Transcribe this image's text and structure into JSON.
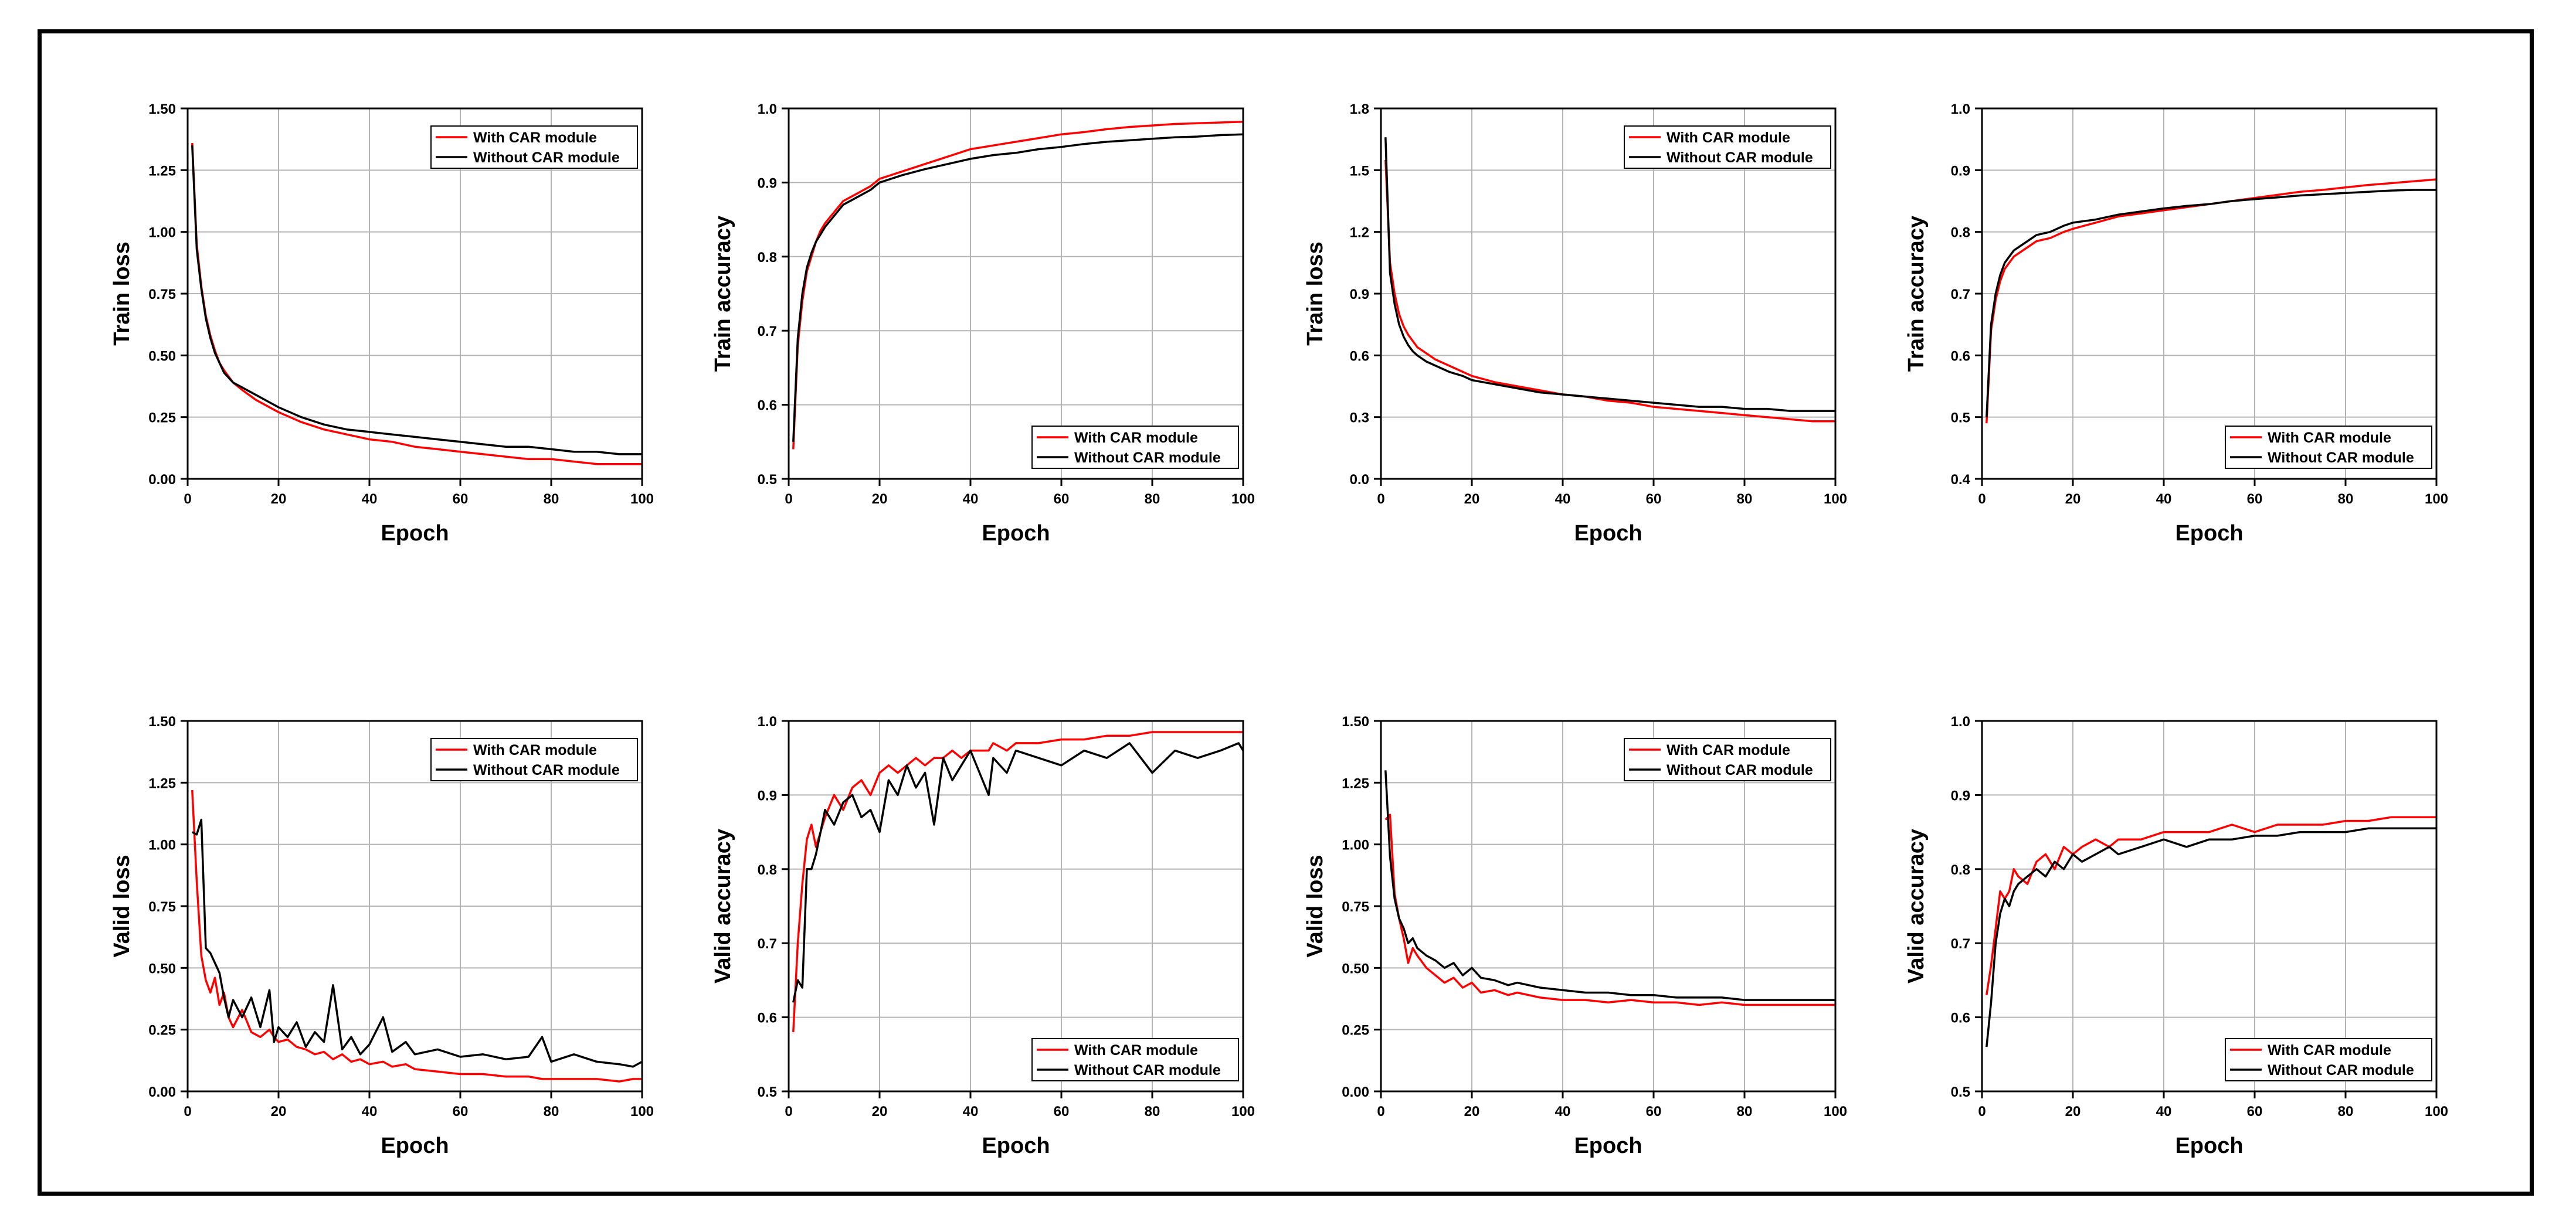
{
  "colors": {
    "with": "#ff0000",
    "without": "#000000",
    "grid": "#b4b4b4",
    "frame": "#000000"
  },
  "legend": {
    "with": "With CAR module",
    "without": "Without CAR module"
  },
  "chart_data": [
    {
      "type": "line",
      "ylabel": "Train loss",
      "xlabel": "Epoch",
      "ylim": [
        0,
        1.5
      ],
      "xlim": [
        0,
        100
      ],
      "yticks": [
        "0.00",
        "0.25",
        "0.50",
        "0.75",
        "1.00",
        "1.25",
        "1.50"
      ],
      "xticks": [
        "0",
        "20",
        "40",
        "60",
        "80",
        "100"
      ],
      "legend_position": "top-right",
      "x": [
        1,
        2,
        3,
        4,
        5,
        6,
        7,
        8,
        10,
        12,
        15,
        18,
        20,
        25,
        30,
        35,
        40,
        45,
        50,
        55,
        60,
        65,
        70,
        75,
        80,
        85,
        90,
        95,
        100
      ],
      "series": [
        {
          "name": "With CAR module",
          "values": [
            1.36,
            0.95,
            0.78,
            0.66,
            0.58,
            0.52,
            0.47,
            0.44,
            0.39,
            0.36,
            0.32,
            0.29,
            0.27,
            0.23,
            0.2,
            0.18,
            0.16,
            0.15,
            0.13,
            0.12,
            0.11,
            0.1,
            0.09,
            0.08,
            0.08,
            0.07,
            0.06,
            0.06,
            0.06
          ]
        },
        {
          "name": "Without CAR module",
          "values": [
            1.35,
            0.93,
            0.77,
            0.65,
            0.57,
            0.51,
            0.47,
            0.43,
            0.39,
            0.37,
            0.34,
            0.31,
            0.29,
            0.25,
            0.22,
            0.2,
            0.19,
            0.18,
            0.17,
            0.16,
            0.15,
            0.14,
            0.13,
            0.13,
            0.12,
            0.11,
            0.11,
            0.1,
            0.1
          ]
        }
      ]
    },
    {
      "type": "line",
      "ylabel": "Train accuracy",
      "xlabel": "Epoch",
      "ylim": [
        0.5,
        1.0
      ],
      "xlim": [
        0,
        100
      ],
      "yticks": [
        "0.5",
        "0.6",
        "0.7",
        "0.8",
        "0.9",
        "1.0"
      ],
      "xticks": [
        "0",
        "20",
        "40",
        "60",
        "80",
        "100"
      ],
      "legend_position": "bottom-right",
      "x": [
        1,
        2,
        3,
        4,
        5,
        6,
        7,
        8,
        10,
        12,
        15,
        18,
        20,
        25,
        30,
        35,
        40,
        45,
        50,
        55,
        60,
        65,
        70,
        75,
        80,
        85,
        90,
        95,
        100
      ],
      "series": [
        {
          "name": "With CAR module",
          "values": [
            0.54,
            0.68,
            0.74,
            0.78,
            0.8,
            0.82,
            0.835,
            0.845,
            0.86,
            0.875,
            0.885,
            0.895,
            0.905,
            0.915,
            0.925,
            0.935,
            0.945,
            0.95,
            0.955,
            0.96,
            0.965,
            0.968,
            0.972,
            0.975,
            0.977,
            0.979,
            0.98,
            0.981,
            0.982
          ]
        },
        {
          "name": "Without CAR module",
          "values": [
            0.55,
            0.69,
            0.75,
            0.785,
            0.805,
            0.82,
            0.83,
            0.84,
            0.855,
            0.87,
            0.88,
            0.89,
            0.9,
            0.91,
            0.918,
            0.925,
            0.932,
            0.937,
            0.94,
            0.945,
            0.948,
            0.952,
            0.955,
            0.957,
            0.959,
            0.961,
            0.962,
            0.964,
            0.965
          ]
        }
      ]
    },
    {
      "type": "line",
      "ylabel": "Train loss",
      "xlabel": "Epoch",
      "ylim": [
        0,
        1.8
      ],
      "xlim": [
        0,
        100
      ],
      "yticks": [
        "0.0",
        "0.3",
        "0.6",
        "0.9",
        "1.2",
        "1.5",
        "1.8"
      ],
      "xticks": [
        "0",
        "20",
        "40",
        "60",
        "80",
        "100"
      ],
      "legend_position": "top-right",
      "x": [
        1,
        2,
        3,
        4,
        5,
        6,
        7,
        8,
        10,
        12,
        15,
        18,
        20,
        25,
        30,
        35,
        40,
        45,
        50,
        55,
        60,
        65,
        70,
        75,
        80,
        85,
        90,
        95,
        100
      ],
      "series": [
        {
          "name": "With CAR module",
          "values": [
            1.55,
            1.05,
            0.9,
            0.8,
            0.74,
            0.7,
            0.67,
            0.64,
            0.61,
            0.58,
            0.55,
            0.52,
            0.5,
            0.47,
            0.45,
            0.43,
            0.41,
            0.4,
            0.38,
            0.37,
            0.35,
            0.34,
            0.33,
            0.32,
            0.31,
            0.3,
            0.29,
            0.28,
            0.28
          ]
        },
        {
          "name": "Without CAR module",
          "values": [
            1.66,
            1.0,
            0.85,
            0.75,
            0.69,
            0.65,
            0.62,
            0.6,
            0.57,
            0.55,
            0.52,
            0.5,
            0.48,
            0.46,
            0.44,
            0.42,
            0.41,
            0.4,
            0.39,
            0.38,
            0.37,
            0.36,
            0.35,
            0.35,
            0.34,
            0.34,
            0.33,
            0.33,
            0.33
          ]
        }
      ]
    },
    {
      "type": "line",
      "ylabel": "Train accuracy",
      "xlabel": "Epoch",
      "ylim": [
        0.4,
        1.0
      ],
      "xlim": [
        0,
        100
      ],
      "yticks": [
        "0.4",
        "0.5",
        "0.6",
        "0.7",
        "0.8",
        "0.9",
        "1.0"
      ],
      "xticks": [
        "0",
        "20",
        "40",
        "60",
        "80",
        "100"
      ],
      "legend_position": "bottom-right",
      "x": [
        1,
        2,
        3,
        4,
        5,
        6,
        7,
        8,
        10,
        12,
        15,
        18,
        20,
        25,
        30,
        35,
        40,
        45,
        50,
        55,
        60,
        65,
        70,
        75,
        80,
        85,
        90,
        95,
        100
      ],
      "series": [
        {
          "name": "With CAR module",
          "values": [
            0.49,
            0.64,
            0.69,
            0.72,
            0.74,
            0.75,
            0.76,
            0.765,
            0.775,
            0.785,
            0.79,
            0.8,
            0.805,
            0.815,
            0.825,
            0.83,
            0.835,
            0.84,
            0.845,
            0.85,
            0.855,
            0.86,
            0.865,
            0.868,
            0.872,
            0.876,
            0.879,
            0.882,
            0.885
          ]
        },
        {
          "name": "Without CAR module",
          "values": [
            0.5,
            0.65,
            0.7,
            0.73,
            0.75,
            0.76,
            0.77,
            0.775,
            0.785,
            0.795,
            0.8,
            0.81,
            0.815,
            0.82,
            0.828,
            0.833,
            0.838,
            0.842,
            0.845,
            0.85,
            0.853,
            0.856,
            0.859,
            0.861,
            0.863,
            0.865,
            0.867,
            0.868,
            0.868
          ]
        }
      ]
    },
    {
      "type": "line",
      "ylabel": "Valid loss",
      "xlabel": "Epoch",
      "ylim": [
        0,
        1.5
      ],
      "xlim": [
        0,
        100
      ],
      "yticks": [
        "0.00",
        "0.25",
        "0.50",
        "0.75",
        "1.00",
        "1.25",
        "1.50"
      ],
      "xticks": [
        "0",
        "20",
        "40",
        "60",
        "80",
        "100"
      ],
      "legend_position": "top-right",
      "x": [
        1,
        2,
        3,
        4,
        5,
        6,
        7,
        8,
        9,
        10,
        12,
        14,
        16,
        18,
        19,
        20,
        22,
        24,
        26,
        28,
        30,
        32,
        34,
        36,
        38,
        40,
        43,
        45,
        48,
        50,
        55,
        60,
        65,
        70,
        75,
        78,
        80,
        85,
        90,
        95,
        98,
        100
      ],
      "series": [
        {
          "name": "With CAR module",
          "values": [
            1.22,
            0.85,
            0.55,
            0.45,
            0.4,
            0.46,
            0.35,
            0.4,
            0.3,
            0.26,
            0.33,
            0.24,
            0.22,
            0.25,
            0.22,
            0.2,
            0.21,
            0.18,
            0.17,
            0.15,
            0.16,
            0.13,
            0.15,
            0.12,
            0.13,
            0.11,
            0.12,
            0.1,
            0.11,
            0.09,
            0.08,
            0.07,
            0.07,
            0.06,
            0.06,
            0.05,
            0.05,
            0.05,
            0.05,
            0.04,
            0.05,
            0.05
          ]
        },
        {
          "name": "Without CAR module",
          "values": [
            1.05,
            1.04,
            1.1,
            0.58,
            0.56,
            0.52,
            0.48,
            0.38,
            0.3,
            0.37,
            0.3,
            0.38,
            0.26,
            0.41,
            0.2,
            0.26,
            0.22,
            0.28,
            0.18,
            0.24,
            0.2,
            0.43,
            0.17,
            0.22,
            0.15,
            0.19,
            0.3,
            0.16,
            0.2,
            0.15,
            0.17,
            0.14,
            0.15,
            0.13,
            0.14,
            0.22,
            0.12,
            0.15,
            0.12,
            0.11,
            0.1,
            0.12
          ]
        }
      ]
    },
    {
      "type": "line",
      "ylabel": "Valid accuracy",
      "xlabel": "Epoch",
      "ylim": [
        0.5,
        1.0
      ],
      "xlim": [
        0,
        100
      ],
      "yticks": [
        "0.5",
        "0.6",
        "0.7",
        "0.8",
        "0.9",
        "1.0"
      ],
      "xticks": [
        "0",
        "20",
        "40",
        "60",
        "80",
        "100"
      ],
      "legend_position": "bottom-right",
      "x": [
        1,
        2,
        3,
        4,
        5,
        6,
        7,
        8,
        10,
        12,
        14,
        16,
        18,
        20,
        22,
        24,
        26,
        28,
        30,
        32,
        34,
        36,
        38,
        40,
        44,
        45,
        48,
        50,
        55,
        60,
        65,
        70,
        75,
        80,
        85,
        90,
        95,
        99,
        100
      ],
      "series": [
        {
          "name": "With CAR module",
          "values": [
            0.58,
            0.7,
            0.78,
            0.84,
            0.86,
            0.83,
            0.85,
            0.87,
            0.9,
            0.88,
            0.91,
            0.92,
            0.9,
            0.93,
            0.94,
            0.93,
            0.94,
            0.95,
            0.94,
            0.95,
            0.95,
            0.96,
            0.95,
            0.96,
            0.96,
            0.97,
            0.96,
            0.97,
            0.97,
            0.975,
            0.975,
            0.98,
            0.98,
            0.985,
            0.985,
            0.985,
            0.985,
            0.985,
            0.985
          ]
        },
        {
          "name": "Without CAR module",
          "values": [
            0.62,
            0.65,
            0.64,
            0.8,
            0.8,
            0.82,
            0.85,
            0.88,
            0.86,
            0.89,
            0.9,
            0.87,
            0.88,
            0.85,
            0.92,
            0.9,
            0.94,
            0.91,
            0.93,
            0.86,
            0.95,
            0.92,
            0.94,
            0.96,
            0.9,
            0.95,
            0.93,
            0.96,
            0.95,
            0.94,
            0.96,
            0.95,
            0.97,
            0.93,
            0.96,
            0.95,
            0.96,
            0.97,
            0.96
          ]
        }
      ]
    },
    {
      "type": "line",
      "ylabel": "Valid loss",
      "xlabel": "Epoch",
      "ylim": [
        0,
        1.5
      ],
      "xlim": [
        0,
        100
      ],
      "yticks": [
        "0.00",
        "0.25",
        "0.50",
        "0.75",
        "1.00",
        "1.25",
        "1.50"
      ],
      "xticks": [
        "0",
        "20",
        "40",
        "60",
        "80",
        "100"
      ],
      "legend_position": "top-right",
      "x": [
        1,
        2,
        3,
        4,
        5,
        6,
        7,
        8,
        10,
        12,
        14,
        16,
        18,
        20,
        22,
        25,
        28,
        30,
        35,
        40,
        45,
        50,
        55,
        60,
        65,
        70,
        75,
        80,
        85,
        90,
        95,
        100
      ],
      "series": [
        {
          "name": "With CAR module",
          "values": [
            1.1,
            1.12,
            0.8,
            0.7,
            0.62,
            0.52,
            0.58,
            0.55,
            0.5,
            0.47,
            0.44,
            0.46,
            0.42,
            0.44,
            0.4,
            0.41,
            0.39,
            0.4,
            0.38,
            0.37,
            0.37,
            0.36,
            0.37,
            0.36,
            0.36,
            0.35,
            0.36,
            0.35,
            0.35,
            0.35,
            0.35,
            0.35
          ]
        },
        {
          "name": "Without CAR module",
          "values": [
            1.3,
            0.95,
            0.78,
            0.7,
            0.66,
            0.6,
            0.62,
            0.58,
            0.55,
            0.53,
            0.5,
            0.52,
            0.47,
            0.5,
            0.46,
            0.45,
            0.43,
            0.44,
            0.42,
            0.41,
            0.4,
            0.4,
            0.39,
            0.39,
            0.38,
            0.38,
            0.38,
            0.37,
            0.37,
            0.37,
            0.37,
            0.37
          ]
        }
      ]
    },
    {
      "type": "line",
      "ylabel": "Valid accuracy",
      "xlabel": "Epoch",
      "ylim": [
        0.5,
        1.0
      ],
      "xlim": [
        0,
        100
      ],
      "yticks": [
        "0.5",
        "0.6",
        "0.7",
        "0.8",
        "0.9",
        "1.0"
      ],
      "xticks": [
        "0",
        "20",
        "40",
        "60",
        "80",
        "100"
      ],
      "legend_position": "bottom-right",
      "x": [
        1,
        2,
        3,
        4,
        5,
        6,
        7,
        8,
        10,
        12,
        14,
        16,
        18,
        20,
        22,
        25,
        28,
        30,
        35,
        40,
        45,
        50,
        55,
        60,
        65,
        70,
        75,
        80,
        85,
        90,
        95,
        100
      ],
      "series": [
        {
          "name": "With CAR module",
          "values": [
            0.63,
            0.67,
            0.72,
            0.77,
            0.76,
            0.77,
            0.8,
            0.79,
            0.78,
            0.81,
            0.82,
            0.8,
            0.83,
            0.82,
            0.83,
            0.84,
            0.83,
            0.84,
            0.84,
            0.85,
            0.85,
            0.85,
            0.86,
            0.85,
            0.86,
            0.86,
            0.86,
            0.865,
            0.865,
            0.87,
            0.87,
            0.87
          ]
        },
        {
          "name": "Without CAR module",
          "values": [
            0.56,
            0.62,
            0.7,
            0.74,
            0.76,
            0.75,
            0.77,
            0.78,
            0.79,
            0.8,
            0.79,
            0.81,
            0.8,
            0.82,
            0.81,
            0.82,
            0.83,
            0.82,
            0.83,
            0.84,
            0.83,
            0.84,
            0.84,
            0.845,
            0.845,
            0.85,
            0.85,
            0.85,
            0.855,
            0.855,
            0.855,
            0.855
          ]
        }
      ]
    }
  ]
}
